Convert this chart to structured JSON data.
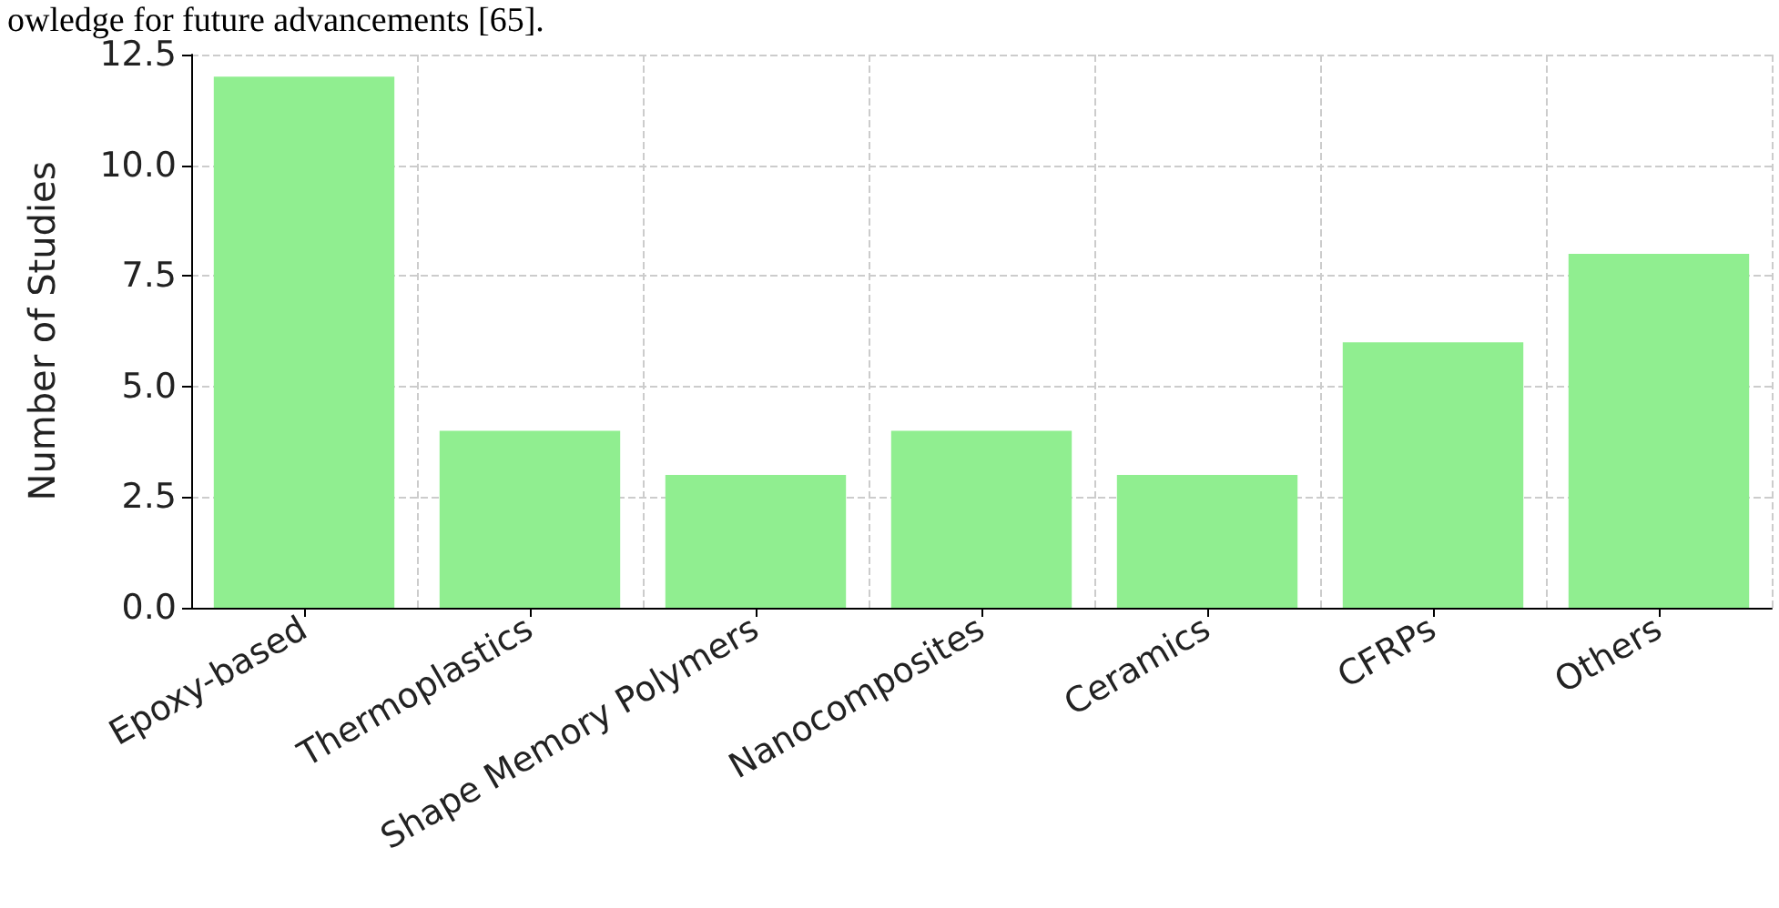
{
  "chart_data": {
    "type": "bar",
    "ylabel": "Number of Studies",
    "annotations": [
      "owledge for future advancements [65]."
    ],
    "categories": [
      "Epoxy-based",
      "Thermoplastics",
      "Shape Memory Polymers",
      "Nanocomposites",
      "Ceramics",
      "CFRPs",
      "Others"
    ],
    "values": [
      12,
      4,
      3,
      4,
      3,
      6,
      8
    ],
    "color": "#90ee90",
    "ylim": [
      0,
      12.5
    ],
    "yticks": [
      {
        "value": 0,
        "label": "0.0"
      },
      {
        "value": 2.5,
        "label": "2.5"
      },
      {
        "value": 5,
        "label": "5.0"
      },
      {
        "value": 7.5,
        "label": "7.5"
      },
      {
        "value": 10,
        "label": "10.0"
      },
      {
        "value": 12.5,
        "label": "12.5"
      }
    ],
    "grid": true
  }
}
